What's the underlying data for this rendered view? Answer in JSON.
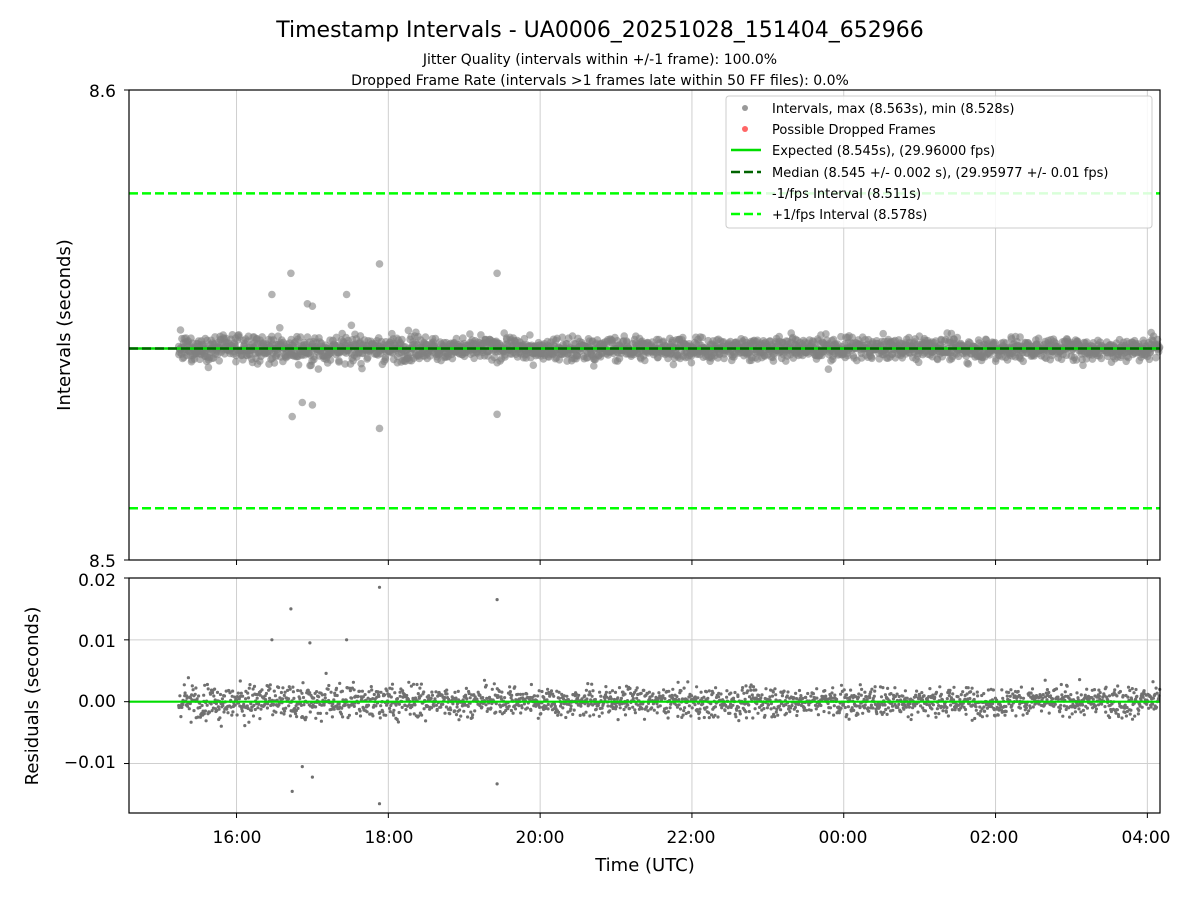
{
  "chart_data": [
    {
      "type": "scatter",
      "title": "Timestamp Intervals - UA0006_20251028_151404_652966",
      "subtitle_lines": [
        "Jitter Quality (intervals within +/-1 frame): 100.0%",
        "Dropped Frame Rate (intervals >1 frames late within 50 FF files): 0.0%"
      ],
      "xlabel": "",
      "ylabel": "Intervals (seconds)",
      "xlim": [
        "14:35",
        "04:10 (next day)"
      ],
      "ylim": [
        8.5,
        8.6
      ],
      "x_ticks": [
        "16:00",
        "18:00",
        "20:00",
        "22:00",
        "00:00",
        "02:00",
        "04:00"
      ],
      "y_ticks": [
        "8.5",
        "8.6"
      ],
      "grid": "x",
      "legend_position": "top-right",
      "legend": [
        {
          "label": "Intervals, max (8.563s), min (8.528s)",
          "kind": "marker",
          "color": "#999999"
        },
        {
          "label": "Possible Dropped Frames",
          "kind": "marker",
          "color": "#ff6666"
        },
        {
          "label": "Expected (8.545s), (29.96000 fps)",
          "kind": "solid",
          "color": "#00dd00"
        },
        {
          "label": "Median (8.545 +/- 0.002 s), (29.95977 +/- 0.01 fps)",
          "kind": "dashed",
          "color": "#006400"
        },
        {
          "label": "-1/fps Interval (8.511s)",
          "kind": "dashed",
          "color": "#00ff00"
        },
        {
          "label": "+1/fps Interval (8.578s)",
          "kind": "dashed",
          "color": "#00ff00"
        }
      ],
      "series": [
        {
          "name": "Intervals, max (8.563s), min (8.528s)",
          "color": "#808080",
          "range_start": "15:14",
          "range_end": "04:10",
          "center": 8.545,
          "typical_spread": 0.0025,
          "outliers": [
            {
              "x": "16:28",
              "y": 8.5565
            },
            {
              "x": "16:43",
              "y": 8.561
            },
            {
              "x": "16:44",
              "y": 8.5305
            },
            {
              "x": "16:52",
              "y": 8.5335
            },
            {
              "x": "16:56",
              "y": 8.5545
            },
            {
              "x": "17:00",
              "y": 8.554
            },
            {
              "x": "17:00",
              "y": 8.533
            },
            {
              "x": "17:27",
              "y": 8.5565
            },
            {
              "x": "17:53",
              "y": 8.563
            },
            {
              "x": "17:53",
              "y": 8.528
            },
            {
              "x": "19:26",
              "y": 8.561
            },
            {
              "x": "19:26",
              "y": 8.531
            }
          ]
        },
        {
          "name": "Possible Dropped Frames",
          "color": "#ff6666",
          "count": 0
        }
      ],
      "reference_lines": [
        {
          "name": "Expected",
          "y": 8.545,
          "style": "solid",
          "color": "#00dd00"
        },
        {
          "name": "Median",
          "y": 8.545,
          "style": "dashed",
          "color": "#006400"
        },
        {
          "name": "-1/fps Interval",
          "y": 8.511,
          "style": "dashed",
          "color": "#00ff00"
        },
        {
          "name": "+1/fps Interval",
          "y": 8.578,
          "style": "dashed",
          "color": "#00ff00"
        }
      ]
    },
    {
      "type": "scatter",
      "title": "",
      "xlabel": "Time (UTC)",
      "ylabel": "Residuals (seconds)",
      "xlim": [
        "14:35",
        "04:10 (next day)"
      ],
      "ylim": [
        -0.018,
        0.02
      ],
      "x_ticks": [
        "16:00",
        "18:00",
        "20:00",
        "22:00",
        "00:00",
        "02:00",
        "04:00"
      ],
      "y_ticks": [
        "0.02",
        "0.01",
        "0.00",
        "−0.01"
      ],
      "y_tick_values": [
        0.02,
        0.01,
        0.0,
        -0.01
      ],
      "grid": "both",
      "series": [
        {
          "name": "",
          "color": "#707070",
          "range_start": "15:14",
          "range_end": "04:10",
          "center": 0.0,
          "typical_spread": 0.0025,
          "outliers": [
            {
              "x": "16:28",
              "y": 0.01
            },
            {
              "x": "16:43",
              "y": 0.015
            },
            {
              "x": "16:44",
              "y": -0.0145
            },
            {
              "x": "16:52",
              "y": -0.0105
            },
            {
              "x": "16:58",
              "y": 0.0095
            },
            {
              "x": "17:00",
              "y": -0.0122
            },
            {
              "x": "17:27",
              "y": 0.01
            },
            {
              "x": "17:53",
              "y": 0.0185
            },
            {
              "x": "17:53",
              "y": -0.0165
            },
            {
              "x": "19:26",
              "y": 0.0165
            },
            {
              "x": "19:26",
              "y": -0.0133
            }
          ]
        }
      ],
      "reference_lines": [
        {
          "name": "zero",
          "y": 0.0,
          "style": "solid",
          "color": "#00dd00"
        }
      ]
    }
  ]
}
